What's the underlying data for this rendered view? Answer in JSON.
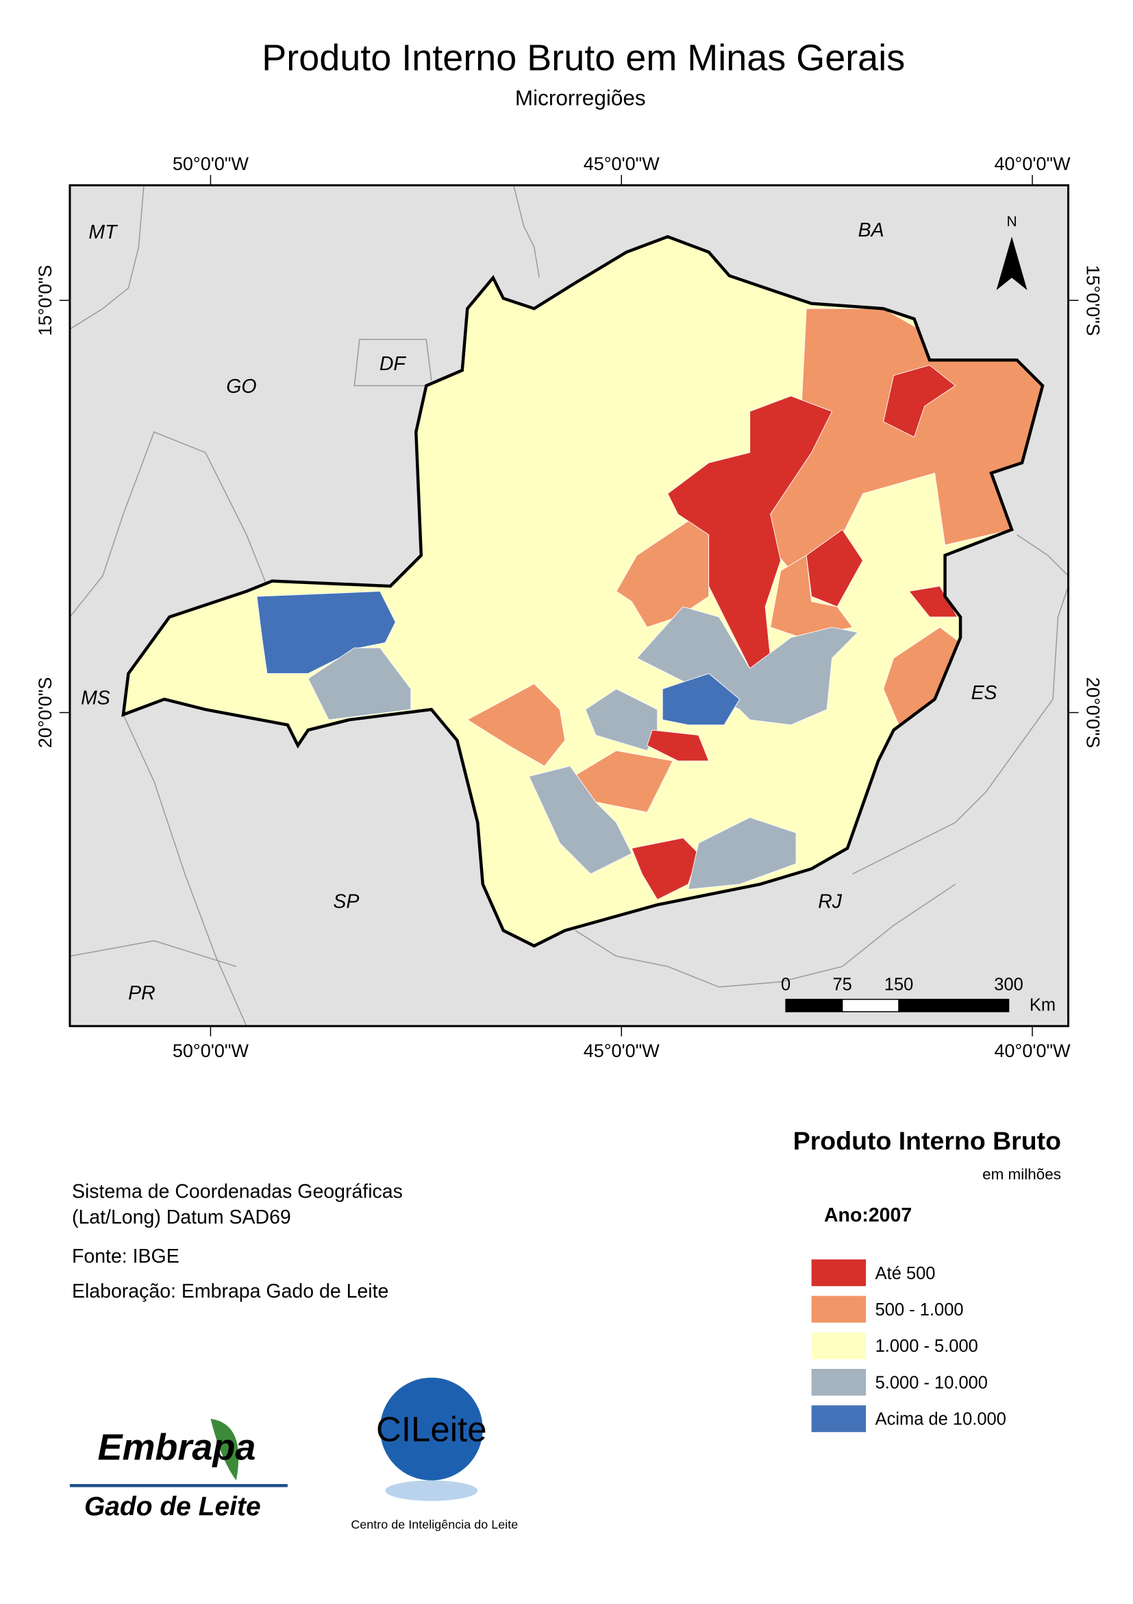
{
  "title": "Produto Interno Bruto em Minas Gerais",
  "subtitle": "Microrregiões",
  "graticule": {
    "longitudes": [
      "50°0'0\"W",
      "45°0'0\"W",
      "40°0'0\"W"
    ],
    "latitudes": [
      "15°0'0\"S",
      "20°0'0\"S"
    ]
  },
  "state_labels": [
    "MT",
    "BA",
    "GO",
    "DF",
    "MS",
    "ES",
    "SP",
    "RJ",
    "PR"
  ],
  "north_label": "N",
  "scale_bar": {
    "labels": [
      0,
      75,
      150,
      300
    ],
    "unit": "Km"
  },
  "legend": {
    "title": "Produto Interno Bruto",
    "subtitle": "em milhões",
    "year": "Ano:2007",
    "items": [
      {
        "label": "Até 500",
        "color": "#d7302b"
      },
      {
        "label": "500 - 1.000",
        "color": "#f19667"
      },
      {
        "label": "1.000 - 5.000",
        "color": "#ffffc2"
      },
      {
        "label": "5.000 - 10.000",
        "color": "#a5b3bf"
      },
      {
        "label": "Acima de 10.000",
        "color": "#4472b8"
      }
    ]
  },
  "notes": [
    "Sistema de Coordenadas Geográficas",
    "(Lat/Long) Datum SAD69",
    "Fonte: IBGE",
    "Elaboração: Embrapa Gado de Leite"
  ],
  "logos": {
    "embrapa": "Embrapa",
    "embrapa_sub": "Gado de Leite",
    "cileite": "CILeite",
    "cileite_sub": "Centro de Inteligência do Leite"
  }
}
